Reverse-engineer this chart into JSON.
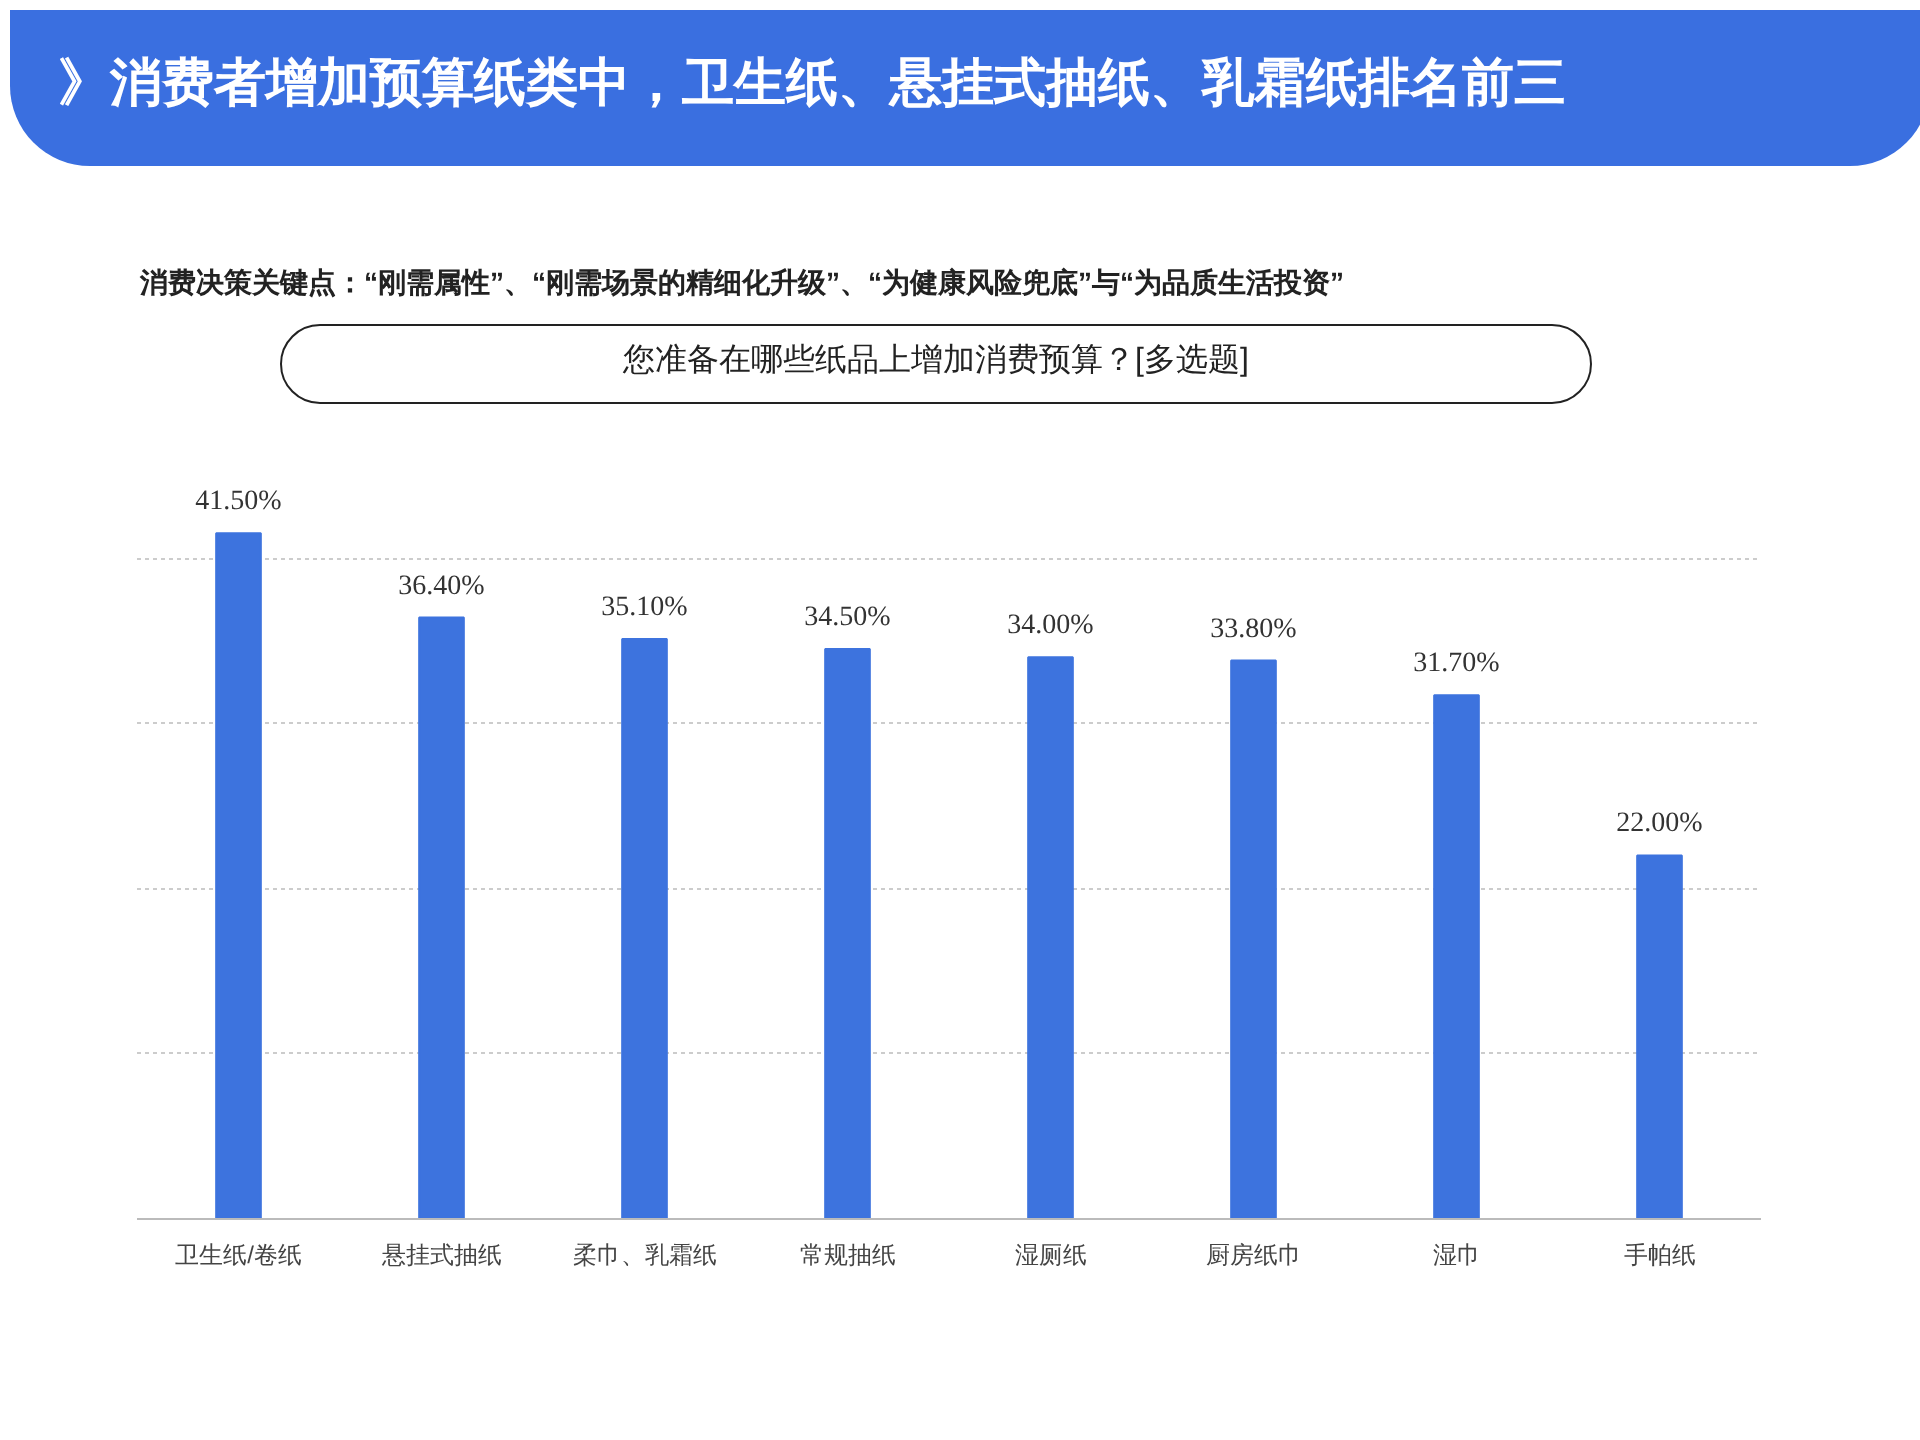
{
  "chart_data": {
    "type": "bar",
    "title": "》消费者增加预算纸类中，卫生纸、悬挂式抽纸、乳霜纸排名前三",
    "subtitle": "消费决策关键点：“刚需属性”、“刚需场景的精细化升级”、“为健康风险兜底”与“为品质生活投资”",
    "annotations": [
      "您准备在哪些纸品上增加消费预算？[多选题]"
    ],
    "categories": [
      "卫生纸/卷纸",
      "悬挂式抽纸",
      "柔巾、乳霜纸",
      "常规抽纸",
      "湿厕纸",
      "厨房纸巾",
      "湿巾",
      "手帕纸"
    ],
    "values": [
      41.5,
      36.4,
      35.1,
      34.5,
      34.0,
      33.8,
      31.7,
      22.0
    ],
    "value_labels": [
      "41.50%",
      "36.40%",
      "35.10%",
      "34.50%",
      "34.00%",
      "33.80%",
      "31.70%",
      "22.00%"
    ],
    "color": "#3d73de",
    "grid": "y",
    "tick_labels": "x"
  }
}
